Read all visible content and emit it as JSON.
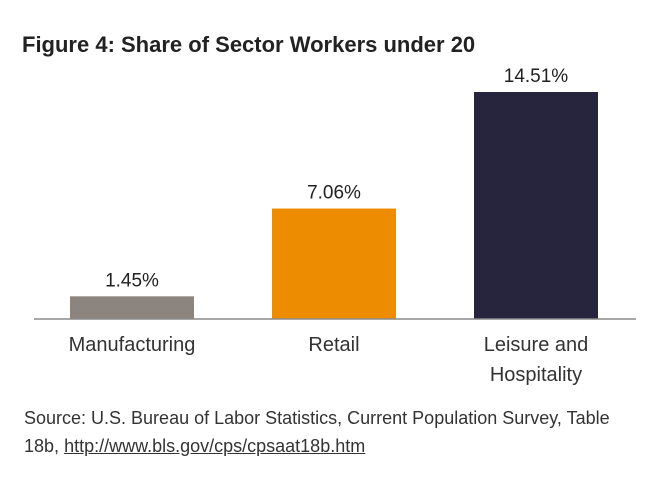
{
  "chart_data": {
    "type": "bar",
    "title": "Figure 4: Share of Sector Workers under 20",
    "categories": [
      [
        "Manufacturing"
      ],
      [
        "Retail"
      ],
      [
        "Leisure and",
        "Hospitality"
      ]
    ],
    "values": [
      1.45,
      7.06,
      14.51
    ],
    "value_labels": [
      "1.45%",
      "7.06%",
      "14.51%"
    ],
    "colors": [
      "#8c857f",
      "#ee8c00",
      "#27243d"
    ],
    "ylim": [
      0,
      15.5
    ],
    "xlabel": "",
    "ylabel": "",
    "grid": false,
    "legend": "none"
  },
  "source": {
    "text": "Source: U.S. Bureau of Labor Statistics, Current Population Survey, Table 18b,",
    "link": "http://www.bls.gov/cps/cpsaat18b.htm"
  }
}
